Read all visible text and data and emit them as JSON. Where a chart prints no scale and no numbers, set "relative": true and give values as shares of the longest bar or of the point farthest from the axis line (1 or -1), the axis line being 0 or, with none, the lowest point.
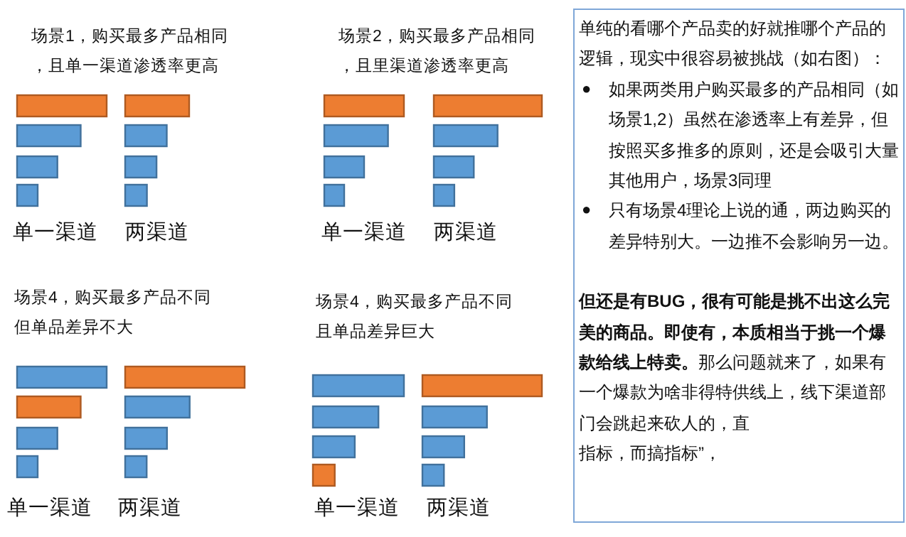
{
  "chart_data": [
    {
      "type": "bar",
      "orientation": "horizontal",
      "relative": true,
      "title": "场景1，购买最多产品相同，且单一渠道渗透率更高",
      "xlabel": "单一渠道",
      "categories": [
        null,
        null,
        null,
        null
      ],
      "values": [
        1,
        0.71,
        0.45,
        0.23
      ],
      "colors": [
        "#ed7d31",
        "#5b9bd5",
        "#5b9bd5",
        "#5b9bd5"
      ]
    },
    {
      "type": "bar",
      "orientation": "horizontal",
      "relative": true,
      "xlabel": "两渠道",
      "categories": [
        null,
        null,
        null,
        null
      ],
      "values": [
        1,
        0.65,
        0.49,
        0.34
      ],
      "colors": [
        "#ed7d31",
        "#5b9bd5",
        "#5b9bd5",
        "#5b9bd5"
      ]
    },
    {
      "type": "bar",
      "orientation": "horizontal",
      "relative": true,
      "title": "场景2，购买最多产品相同，且里渠道渗透率更高",
      "xlabel": "单一渠道",
      "categories": [
        null,
        null,
        null,
        null
      ],
      "values": [
        1,
        0.8,
        0.5,
        0.25
      ],
      "colors": [
        "#ed7d31",
        "#5b9bd5",
        "#5b9bd5",
        "#5b9bd5"
      ]
    },
    {
      "type": "bar",
      "orientation": "horizontal",
      "relative": true,
      "xlabel": "两渠道",
      "categories": [
        null,
        null,
        null,
        null
      ],
      "values": [
        1,
        0.59,
        0.37,
        0.19
      ],
      "colors": [
        "#ed7d31",
        "#5b9bd5",
        "#5b9bd5",
        "#5b9bd5"
      ]
    },
    {
      "type": "bar",
      "orientation": "horizontal",
      "relative": true,
      "title": "场景4，购买最多产品不同但单品差异不大",
      "xlabel": "单一渠道",
      "categories": [
        null,
        null,
        null,
        null
      ],
      "values": [
        1,
        0.71,
        0.45,
        0.23
      ],
      "colors": [
        "#5b9bd5",
        "#ed7d31",
        "#5b9bd5",
        "#5b9bd5"
      ]
    },
    {
      "type": "bar",
      "orientation": "horizontal",
      "relative": true,
      "xlabel": "两渠道",
      "categories": [
        null,
        null,
        null,
        null
      ],
      "values": [
        1,
        0.54,
        0.35,
        0.18
      ],
      "colors": [
        "#ed7d31",
        "#5b9bd5",
        "#5b9bd5",
        "#5b9bd5"
      ]
    },
    {
      "type": "bar",
      "orientation": "horizontal",
      "relative": true,
      "title": "场景4，购买最多产品不同且单品差异巨大",
      "xlabel": "单一渠道",
      "categories": [
        null,
        null,
        null,
        null
      ],
      "values": [
        1,
        0.72,
        0.46,
        0.24
      ],
      "colors": [
        "#5b9bd5",
        "#5b9bd5",
        "#5b9bd5",
        "#ed7d31"
      ]
    },
    {
      "type": "bar",
      "orientation": "horizontal",
      "relative": true,
      "xlabel": "两渠道",
      "categories": [
        null,
        null,
        null,
        null
      ],
      "values": [
        1,
        0.54,
        0.35,
        0.18
      ],
      "colors": [
        "#ed7d31",
        "#5b9bd5",
        "#5b9bd5",
        "#5b9bd5"
      ]
    },
    {
      "type": "other",
      "annotations": [
        "单纯的看哪个产品卖的好就推哪个产品的逻辑，现实中很容易被挑战（如右图）：",
        "●如果两类用户购买最多的产品相同（如场景1,2）虽然在渗透率上有差异，但按照买多推多的原则，还是会吸引大量其他用户，场景3同理",
        "●只有场景4理论上说的通，两边购买的差异特别大。一边推不会影响另一边。",
        "但还是有BUG，很有可能是挑不出这么完美的商品。即使有，本质相当于挑一个爆款给线上特卖。",
        "那么问题就来了，如果有一个爆款为啥非得特供线上，线下渠道部门会跳起来砍人的，直",
        "指标，而搞指标”，"
      ]
    }
  ]
}
